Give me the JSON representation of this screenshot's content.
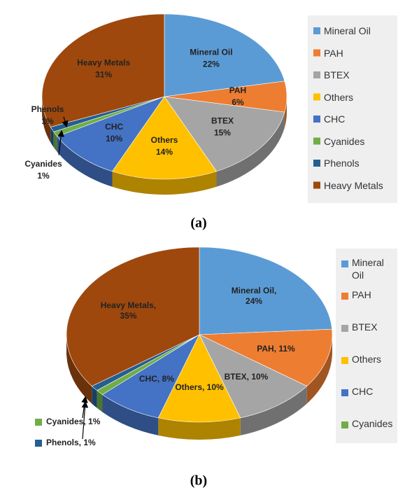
{
  "chart_data": [
    {
      "type": "pie3d",
      "categories": [
        "Mineral Oil",
        "PAH",
        "BTEX",
        "Others",
        "CHC",
        "Cyanides",
        "Phenols",
        "Heavy Metals"
      ],
      "values": [
        22,
        6,
        15,
        14,
        10,
        1,
        1,
        31
      ],
      "value_labels": [
        "22%",
        "6%",
        "15%",
        "14%",
        "10%",
        "1%",
        "1%",
        "31%"
      ],
      "colors": [
        "#5b9bd5",
        "#ed7d31",
        "#a5a5a5",
        "#ffc000",
        "#4472c4",
        "#70ad47",
        "#255e91",
        "#9e480e"
      ],
      "legend": [
        "Mineral Oil",
        "PAH",
        "BTEX",
        "Others",
        "CHC",
        "Cyanides",
        "Phenols",
        "Heavy Metals"
      ],
      "caption": "(a)"
    },
    {
      "type": "pie3d",
      "categories": [
        "Mineral Oil",
        "PAH",
        "BTEX",
        "Others",
        "CHC",
        "Cyanides",
        "Phenols",
        "Heavy Metals"
      ],
      "values": [
        24,
        11,
        10,
        10,
        8,
        1,
        1,
        35
      ],
      "value_labels": [
        "Mineral Oil, 24%",
        "PAH, 11%",
        "BTEX, 10%",
        "Others, 10%",
        "CHC, 8%",
        "Cyanides, 1%",
        "Phenols, 1%",
        "Heavy Metals, 35%"
      ],
      "colors": [
        "#5b9bd5",
        "#ed7d31",
        "#a5a5a5",
        "#ffc000",
        "#4472c4",
        "#70ad47",
        "#255e91",
        "#9e480e"
      ],
      "legend": [
        "Mineral Oil",
        "PAH",
        "BTEX",
        "Others",
        "CHC",
        "Cyanides"
      ],
      "caption": "(b)"
    }
  ]
}
